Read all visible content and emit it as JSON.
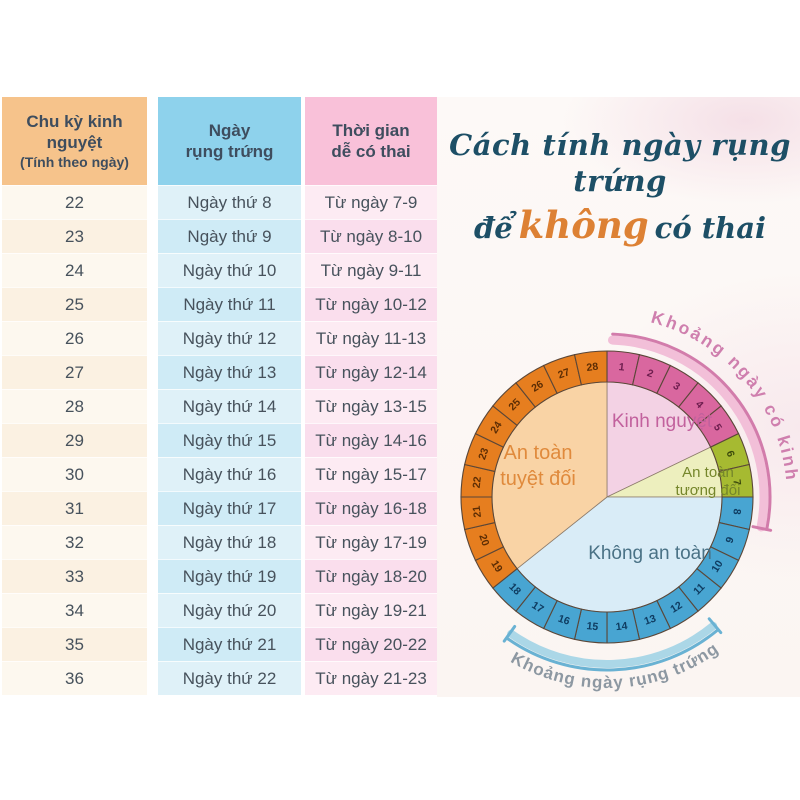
{
  "table": {
    "columns": [
      {
        "title": "Chu kỳ kinh nguyệt",
        "subtitle": "(Tính theo ngày)"
      },
      {
        "title": "Ngày",
        "subtitle": "rụng trứng"
      },
      {
        "title": "Thời gian",
        "subtitle": "dễ có thai"
      }
    ],
    "rows": [
      {
        "cycle": "22",
        "ovulation": "Ngày thứ 8",
        "fertile": "Từ ngày 7-9"
      },
      {
        "cycle": "23",
        "ovulation": "Ngày thứ 9",
        "fertile": "Từ ngày 8-10"
      },
      {
        "cycle": "24",
        "ovulation": "Ngày thứ 10",
        "fertile": "Từ ngày 9-11"
      },
      {
        "cycle": "25",
        "ovulation": "Ngày thứ 11",
        "fertile": "Từ ngày 10-12"
      },
      {
        "cycle": "26",
        "ovulation": "Ngày thứ 12",
        "fertile": "Từ ngày 11-13"
      },
      {
        "cycle": "27",
        "ovulation": "Ngày thứ 13",
        "fertile": "Từ ngày 12-14"
      },
      {
        "cycle": "28",
        "ovulation": "Ngày thứ 14",
        "fertile": "Từ ngày 13-15"
      },
      {
        "cycle": "29",
        "ovulation": "Ngày thứ 15",
        "fertile": "Từ ngày 14-16"
      },
      {
        "cycle": "30",
        "ovulation": "Ngày thứ 16",
        "fertile": "Từ ngày 15-17"
      },
      {
        "cycle": "31",
        "ovulation": "Ngày thứ 17",
        "fertile": "Từ ngày 16-18"
      },
      {
        "cycle": "32",
        "ovulation": "Ngày thứ 18",
        "fertile": "Từ ngày 17-19"
      },
      {
        "cycle": "33",
        "ovulation": "Ngày thứ 19",
        "fertile": "Từ ngày 18-20"
      },
      {
        "cycle": "34",
        "ovulation": "Ngày thứ 20",
        "fertile": "Từ ngày 19-21"
      },
      {
        "cycle": "35",
        "ovulation": "Ngày thứ 21",
        "fertile": "Từ ngày 20-22"
      },
      {
        "cycle": "36",
        "ovulation": "Ngày thứ 22",
        "fertile": "Từ ngày 21-23"
      }
    ]
  },
  "title": {
    "line1": "Cách tính ngày rụng trứng",
    "line2_pre": "để",
    "line2_em": "không",
    "line2_post": "có thai",
    "accent_color": "#dd8134",
    "main_color": "#1d4f66"
  },
  "chart_data": {
    "type": "pie",
    "subtype": "28-day-cycle-wheel",
    "days_total": 28,
    "start_day_at_top": 1,
    "zones": [
      {
        "id": "kinh-nguyet",
        "label_lines": [
          "Kinh nguyệt"
        ],
        "days": [
          1,
          5
        ],
        "ring_color": "#d9679f",
        "fill_color": "#f3d2e4",
        "label_color": "#c2619d",
        "number_color": "#6d1d4e",
        "label_offset": [
          55,
          -70
        ],
        "label_size": 19,
        "line_gap": 0
      },
      {
        "id": "an-toan-tuong-doi",
        "label_lines": [
          "An toàn",
          "tương đối"
        ],
        "days": [
          6,
          7
        ],
        "ring_color": "#a6ba31",
        "fill_color": "#edefbe",
        "label_color": "#75862b",
        "number_color": "#3c4a0c",
        "label_offset": [
          101,
          -20
        ],
        "label_size": 15,
        "line_gap": 18
      },
      {
        "id": "khong-an-toan",
        "label_lines": [
          "Không an toàn"
        ],
        "days": [
          8,
          18
        ],
        "ring_color": "#48a5d2",
        "fill_color": "#d9ecf7",
        "label_color": "#4a7286",
        "number_color": "#0f3c61",
        "label_offset": [
          43,
          62
        ],
        "label_size": 19,
        "line_gap": 0
      },
      {
        "id": "an-toan-tuyet-doi",
        "label_lines": [
          "An toàn",
          "tuyệt đối"
        ],
        "days": [
          19,
          28
        ],
        "ring_color": "#e67e1f",
        "fill_color": "#f9d3a5",
        "label_color": "#e08a3c",
        "number_color": "#5c2d04",
        "label_offset": [
          -69,
          -38
        ],
        "label_size": 20,
        "line_gap": 26
      }
    ],
    "outer_arcs": [
      {
        "label": "Khoảng ngày có kinh",
        "from_deg": 2,
        "to_deg": 101,
        "sweep": 1,
        "band_color": "#f2bfd8",
        "edge_color": "#d27cab",
        "text_color": "#cf7fae",
        "text_size": 17.5,
        "letter_spacing": 2.5,
        "start_offset": "12%",
        "ticks_deg": [
          101.5
        ]
      },
      {
        "label": "Khoảng ngày rụng trứng",
        "from_deg": 215,
        "to_deg": 140.5,
        "sweep": 0,
        "band_color": "#abd7e7",
        "edge_color": "#69b2d3",
        "text_color": "#8d98a2",
        "text_size": 17,
        "letter_spacing": 1,
        "start_offset": "6%",
        "ticks_deg": [
          215.5,
          140
        ]
      }
    ]
  }
}
